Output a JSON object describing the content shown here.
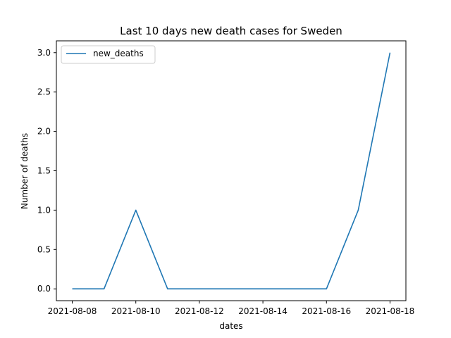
{
  "chart_data": {
    "type": "line",
    "title": "Last 10 days new death cases for Sweden",
    "xlabel": "dates",
    "ylabel": "Number of deaths",
    "x": [
      "2021-08-08",
      "2021-08-09",
      "2021-08-10",
      "2021-08-11",
      "2021-08-12",
      "2021-08-13",
      "2021-08-14",
      "2021-08-15",
      "2021-08-16",
      "2021-08-17",
      "2021-08-18"
    ],
    "series": [
      {
        "name": "new_deaths",
        "values": [
          0,
          0,
          1,
          0,
          0,
          0,
          0,
          0,
          0,
          1,
          3
        ],
        "color": "#1f77b4"
      }
    ],
    "xticks": [
      "2021-08-08",
      "2021-08-10",
      "2021-08-12",
      "2021-08-14",
      "2021-08-16",
      "2021-08-18"
    ],
    "yticks": [
      "0.0",
      "0.5",
      "1.0",
      "1.5",
      "2.0",
      "2.5",
      "3.0"
    ],
    "xlim": [
      "2021-08-07",
      "2021-08-18"
    ],
    "ylim": [
      -0.15,
      3.15
    ],
    "grid": false,
    "legend_position": "upper-left"
  }
}
